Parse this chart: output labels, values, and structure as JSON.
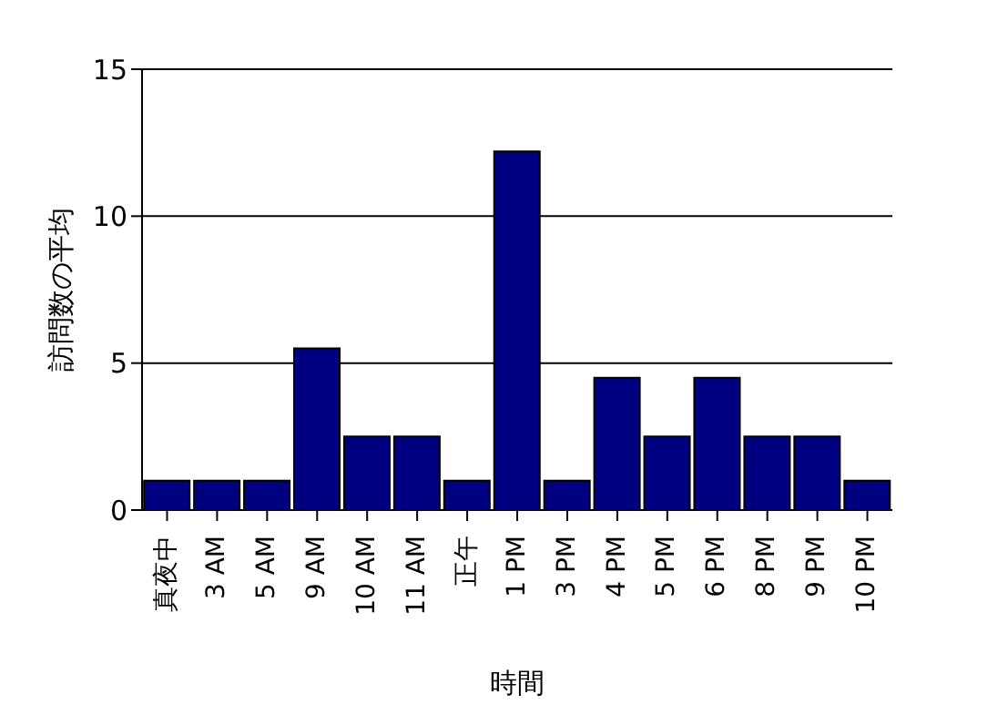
{
  "chart_data": {
    "type": "bar",
    "xlabel": "時間",
    "ylabel": "訪問数の平均",
    "categories": [
      "真夜中",
      "3 AM",
      "5 AM",
      "9 AM",
      "10 AM",
      "11 AM",
      "正午",
      "1 PM",
      "3 PM",
      "4 PM",
      "5 PM",
      "6 PM",
      "8 PM",
      "9 PM",
      "10 PM"
    ],
    "values": [
      1,
      1,
      1,
      5.5,
      2.5,
      2.5,
      1,
      12.2,
      1,
      4.5,
      2.5,
      4.5,
      2.5,
      2.5,
      1
    ],
    "color": "#000080",
    "ylim": [
      0,
      15
    ],
    "yticks": [
      0,
      5,
      10,
      15
    ],
    "grid": "y"
  }
}
